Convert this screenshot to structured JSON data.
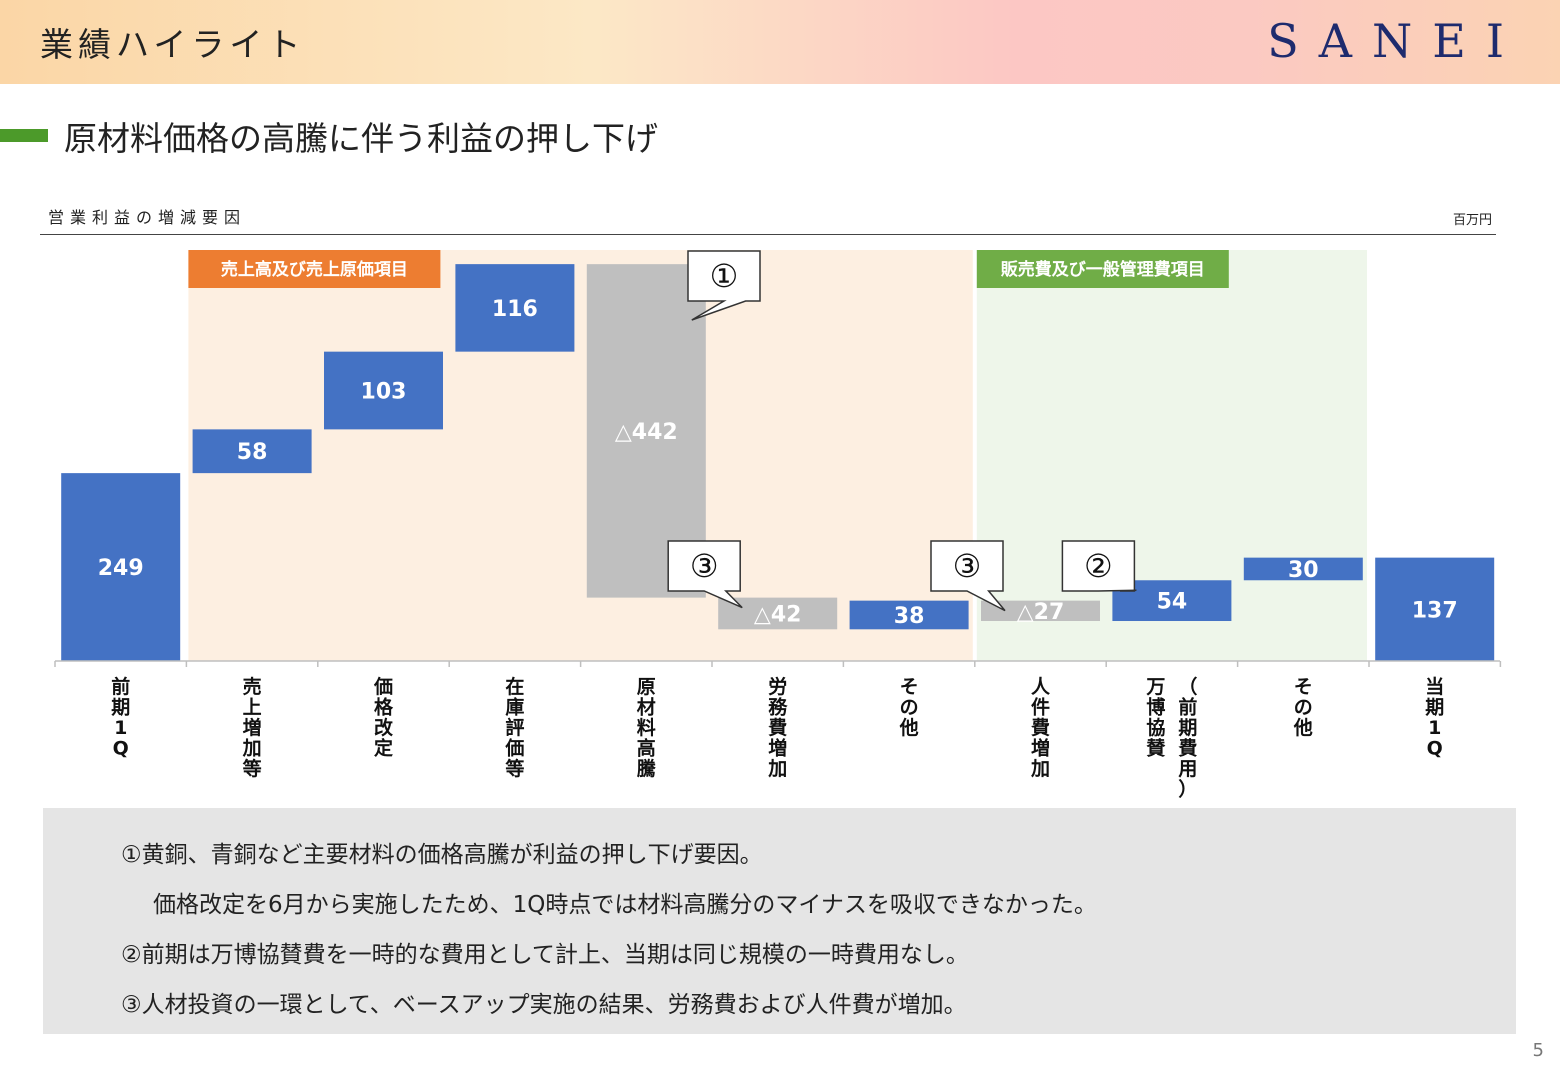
{
  "header": {
    "title": "業績ハイライト",
    "brand": "SANEI"
  },
  "section": {
    "title": "原材料価格の高騰に伴う利益の押し下げ"
  },
  "chart_data": {
    "type": "bar",
    "subtype": "waterfall",
    "title": "営業利益の増減要因",
    "unit": "百万円",
    "ylim": [
      0,
      560
    ],
    "grid": false,
    "categories": [
      "前期1Q",
      "売上増加等",
      "価格改定",
      "在庫評価等",
      "原材料高騰",
      "労務費増加",
      "その他",
      "人件費増加",
      "万博協賛（前期費用）",
      "その他",
      "当期1Q"
    ],
    "steps": [
      {
        "category": "前期1Q",
        "kind": "total",
        "start": 0,
        "end": 249,
        "label": "249"
      },
      {
        "category": "売上増加等",
        "kind": "increase",
        "start": 249,
        "end": 307,
        "label": "58"
      },
      {
        "category": "価格改定",
        "kind": "increase",
        "start": 307,
        "end": 410,
        "label": "103"
      },
      {
        "category": "在庫評価等",
        "kind": "increase",
        "start": 410,
        "end": 526,
        "label": "116"
      },
      {
        "category": "原材料高騰",
        "kind": "decrease",
        "start": 526,
        "end": 84,
        "label": "△442"
      },
      {
        "category": "労務費増加",
        "kind": "decrease",
        "start": 84,
        "end": 42,
        "label": "△42"
      },
      {
        "category": "その他",
        "kind": "increase",
        "start": 42,
        "end": 80,
        "label": "38"
      },
      {
        "category": "人件費増加",
        "kind": "decrease",
        "start": 80,
        "end": 53,
        "label": "△27"
      },
      {
        "category": "万博協賛（前期費用）",
        "kind": "increase",
        "start": 53,
        "end": 107,
        "label": "54"
      },
      {
        "category": "その他",
        "kind": "increase",
        "start": 107,
        "end": 137,
        "label": "30"
      },
      {
        "category": "当期1Q",
        "kind": "total",
        "start": 0,
        "end": 137,
        "label": "137"
      }
    ],
    "groups": [
      {
        "label": "売上高及び売上原価項目",
        "from": 1,
        "to": 6,
        "color": "#fdefe1",
        "label_color": "#ed7d31"
      },
      {
        "label": "販売費及び一般管理費項目",
        "from": 7,
        "to": 9,
        "color": "#eef6ea",
        "label_color": "#70ad47"
      }
    ],
    "callouts": [
      {
        "text": "①",
        "target": 4
      },
      {
        "text": "③",
        "target": 5
      },
      {
        "text": "③",
        "target": 7
      },
      {
        "text": "②",
        "target": 8
      }
    ],
    "colors": {
      "increase": "#4472c4",
      "total": "#4472c4",
      "decrease": "#bfbfbf"
    }
  },
  "notes": [
    "①黄銅、青銅など主要材料の価格高騰が利益の押し下げ要因。",
    "価格改定を6月から実施したため、1Q時点では材料高騰分のマイナスを吸収できなかった。",
    "②前期は万博協賛費を一時的な費用として計上、当期は同じ規模の一時費用なし。",
    "③人材投資の一環として、ベースアップ実施の結果、労務費および人件費が増加。"
  ],
  "page_number": "5"
}
